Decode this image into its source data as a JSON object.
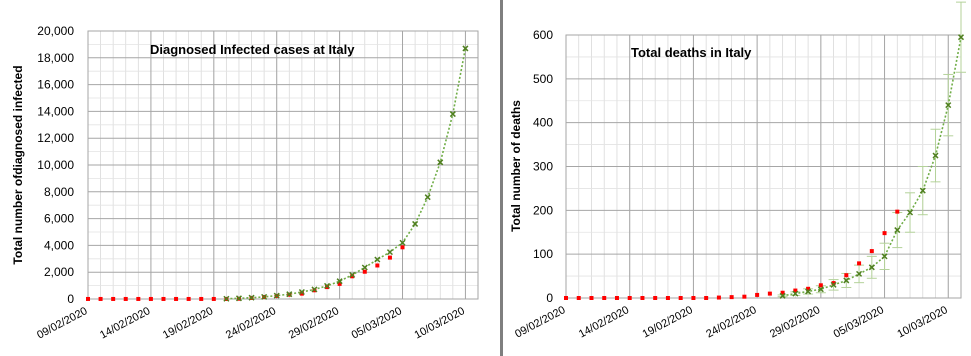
{
  "chart_data": [
    {
      "type": "scatter",
      "title": "Diagnosed Infected cases at Italy",
      "xlabel": "",
      "ylabel": "Total number ofdiagnosed infected",
      "ylim": [
        0,
        20000
      ],
      "xlim": [
        "09/02/2020",
        "11/03/2020"
      ],
      "grid": true,
      "yticks": [
        "0",
        "2,000",
        "4,000",
        "6,000",
        "8,000",
        "10,000",
        "12,000",
        "14,000",
        "16,000",
        "18,000",
        "20,000"
      ],
      "ytick_values": [
        0,
        2000,
        4000,
        6000,
        8000,
        10000,
        12000,
        14000,
        16000,
        18000,
        20000
      ],
      "xticks": [
        "09/02/2020",
        "14/02/2020",
        "19/02/2020",
        "24/02/2020",
        "29/02/2020",
        "05/03/2020",
        "10/03/2020"
      ],
      "series": [
        {
          "style": "observed",
          "color": "#ff0000",
          "x": [
            "09/02/2020",
            "10/02/2020",
            "11/02/2020",
            "12/02/2020",
            "13/02/2020",
            "14/02/2020",
            "15/02/2020",
            "16/02/2020",
            "17/02/2020",
            "18/02/2020",
            "19/02/2020",
            "20/02/2020",
            "21/02/2020",
            "22/02/2020",
            "23/02/2020",
            "24/02/2020",
            "25/02/2020",
            "26/02/2020",
            "27/02/2020",
            "28/02/2020",
            "29/02/2020",
            "01/03/2020",
            "02/03/2020",
            "03/03/2020",
            "04/03/2020",
            "05/03/2020"
          ],
          "y": [
            3,
            3,
            3,
            3,
            3,
            3,
            3,
            3,
            3,
            3,
            3,
            3,
            20,
            79,
            150,
            229,
            322,
            400,
            650,
            888,
            1128,
            1694,
            2036,
            2502,
            3089,
            3858
          ]
        },
        {
          "style": "fitted",
          "color": "#4f7f1f",
          "x": [
            "20/02/2020",
            "21/02/2020",
            "22/02/2020",
            "23/02/2020",
            "24/02/2020",
            "25/02/2020",
            "26/02/2020",
            "27/02/2020",
            "28/02/2020",
            "29/02/2020",
            "01/03/2020",
            "02/03/2020",
            "03/03/2020",
            "04/03/2020",
            "05/03/2020",
            "06/03/2020",
            "07/03/2020",
            "08/03/2020",
            "09/03/2020",
            "10/03/2020"
          ],
          "y": [
            20,
            50,
            100,
            160,
            250,
            360,
            520,
            720,
            980,
            1330,
            1800,
            2350,
            2950,
            3500,
            4200,
            5600,
            7600,
            10200,
            13800,
            18700
          ]
        }
      ]
    },
    {
      "type": "scatter",
      "title": "Total deaths in Italy",
      "xlabel": "",
      "ylabel": "Total number of deaths",
      "ylim": [
        0,
        600
      ],
      "xlim": [
        "09/02/2020",
        "11/03/2020"
      ],
      "grid": true,
      "yticks": [
        "0",
        "100",
        "200",
        "300",
        "400",
        "500",
        "600"
      ],
      "ytick_values": [
        0,
        100,
        200,
        300,
        400,
        500,
        600
      ],
      "xticks": [
        "09/02/2020",
        "14/02/2020",
        "19/02/2020",
        "24/02/2020",
        "29/02/2020",
        "05/03/2020",
        "10/03/2020"
      ],
      "series": [
        {
          "style": "observed",
          "color": "#ff0000",
          "x": [
            "09/02/2020",
            "10/02/2020",
            "11/02/2020",
            "12/02/2020",
            "13/02/2020",
            "14/02/2020",
            "15/02/2020",
            "16/02/2020",
            "17/02/2020",
            "18/02/2020",
            "19/02/2020",
            "20/02/2020",
            "21/02/2020",
            "22/02/2020",
            "23/02/2020",
            "24/02/2020",
            "25/02/2020",
            "26/02/2020",
            "27/02/2020",
            "28/02/2020",
            "29/02/2020",
            "01/03/2020",
            "02/03/2020",
            "03/03/2020",
            "04/03/2020",
            "05/03/2020",
            "06/03/2020"
          ],
          "y": [
            0,
            0,
            0,
            0,
            0,
            0,
            0,
            0,
            0,
            0,
            0,
            0,
            1,
            2,
            3,
            7,
            10,
            12,
            17,
            21,
            29,
            34,
            52,
            79,
            107,
            148,
            197
          ]
        },
        {
          "style": "fitted",
          "color": "#4f7f1f",
          "errorbar_color": "#b4d29a",
          "x": [
            "26/02/2020",
            "27/02/2020",
            "28/02/2020",
            "29/02/2020",
            "01/03/2020",
            "02/03/2020",
            "03/03/2020",
            "04/03/2020",
            "05/03/2020",
            "06/03/2020",
            "07/03/2020",
            "08/03/2020",
            "09/03/2020",
            "10/03/2020"
          ],
          "y": [
            5,
            10,
            15,
            20,
            30,
            40,
            55,
            70,
            95,
            155,
            195,
            245,
            325,
            440
          ],
          "err": [
            2,
            4,
            6,
            8,
            12,
            16,
            20,
            25,
            30,
            40,
            45,
            55,
            60,
            70
          ]
        },
        {
          "style": "fitted",
          "color": "#4f7f1f",
          "x": [
            "11/03/2020"
          ],
          "y": [
            595
          ],
          "err": [
            80
          ]
        }
      ]
    }
  ]
}
